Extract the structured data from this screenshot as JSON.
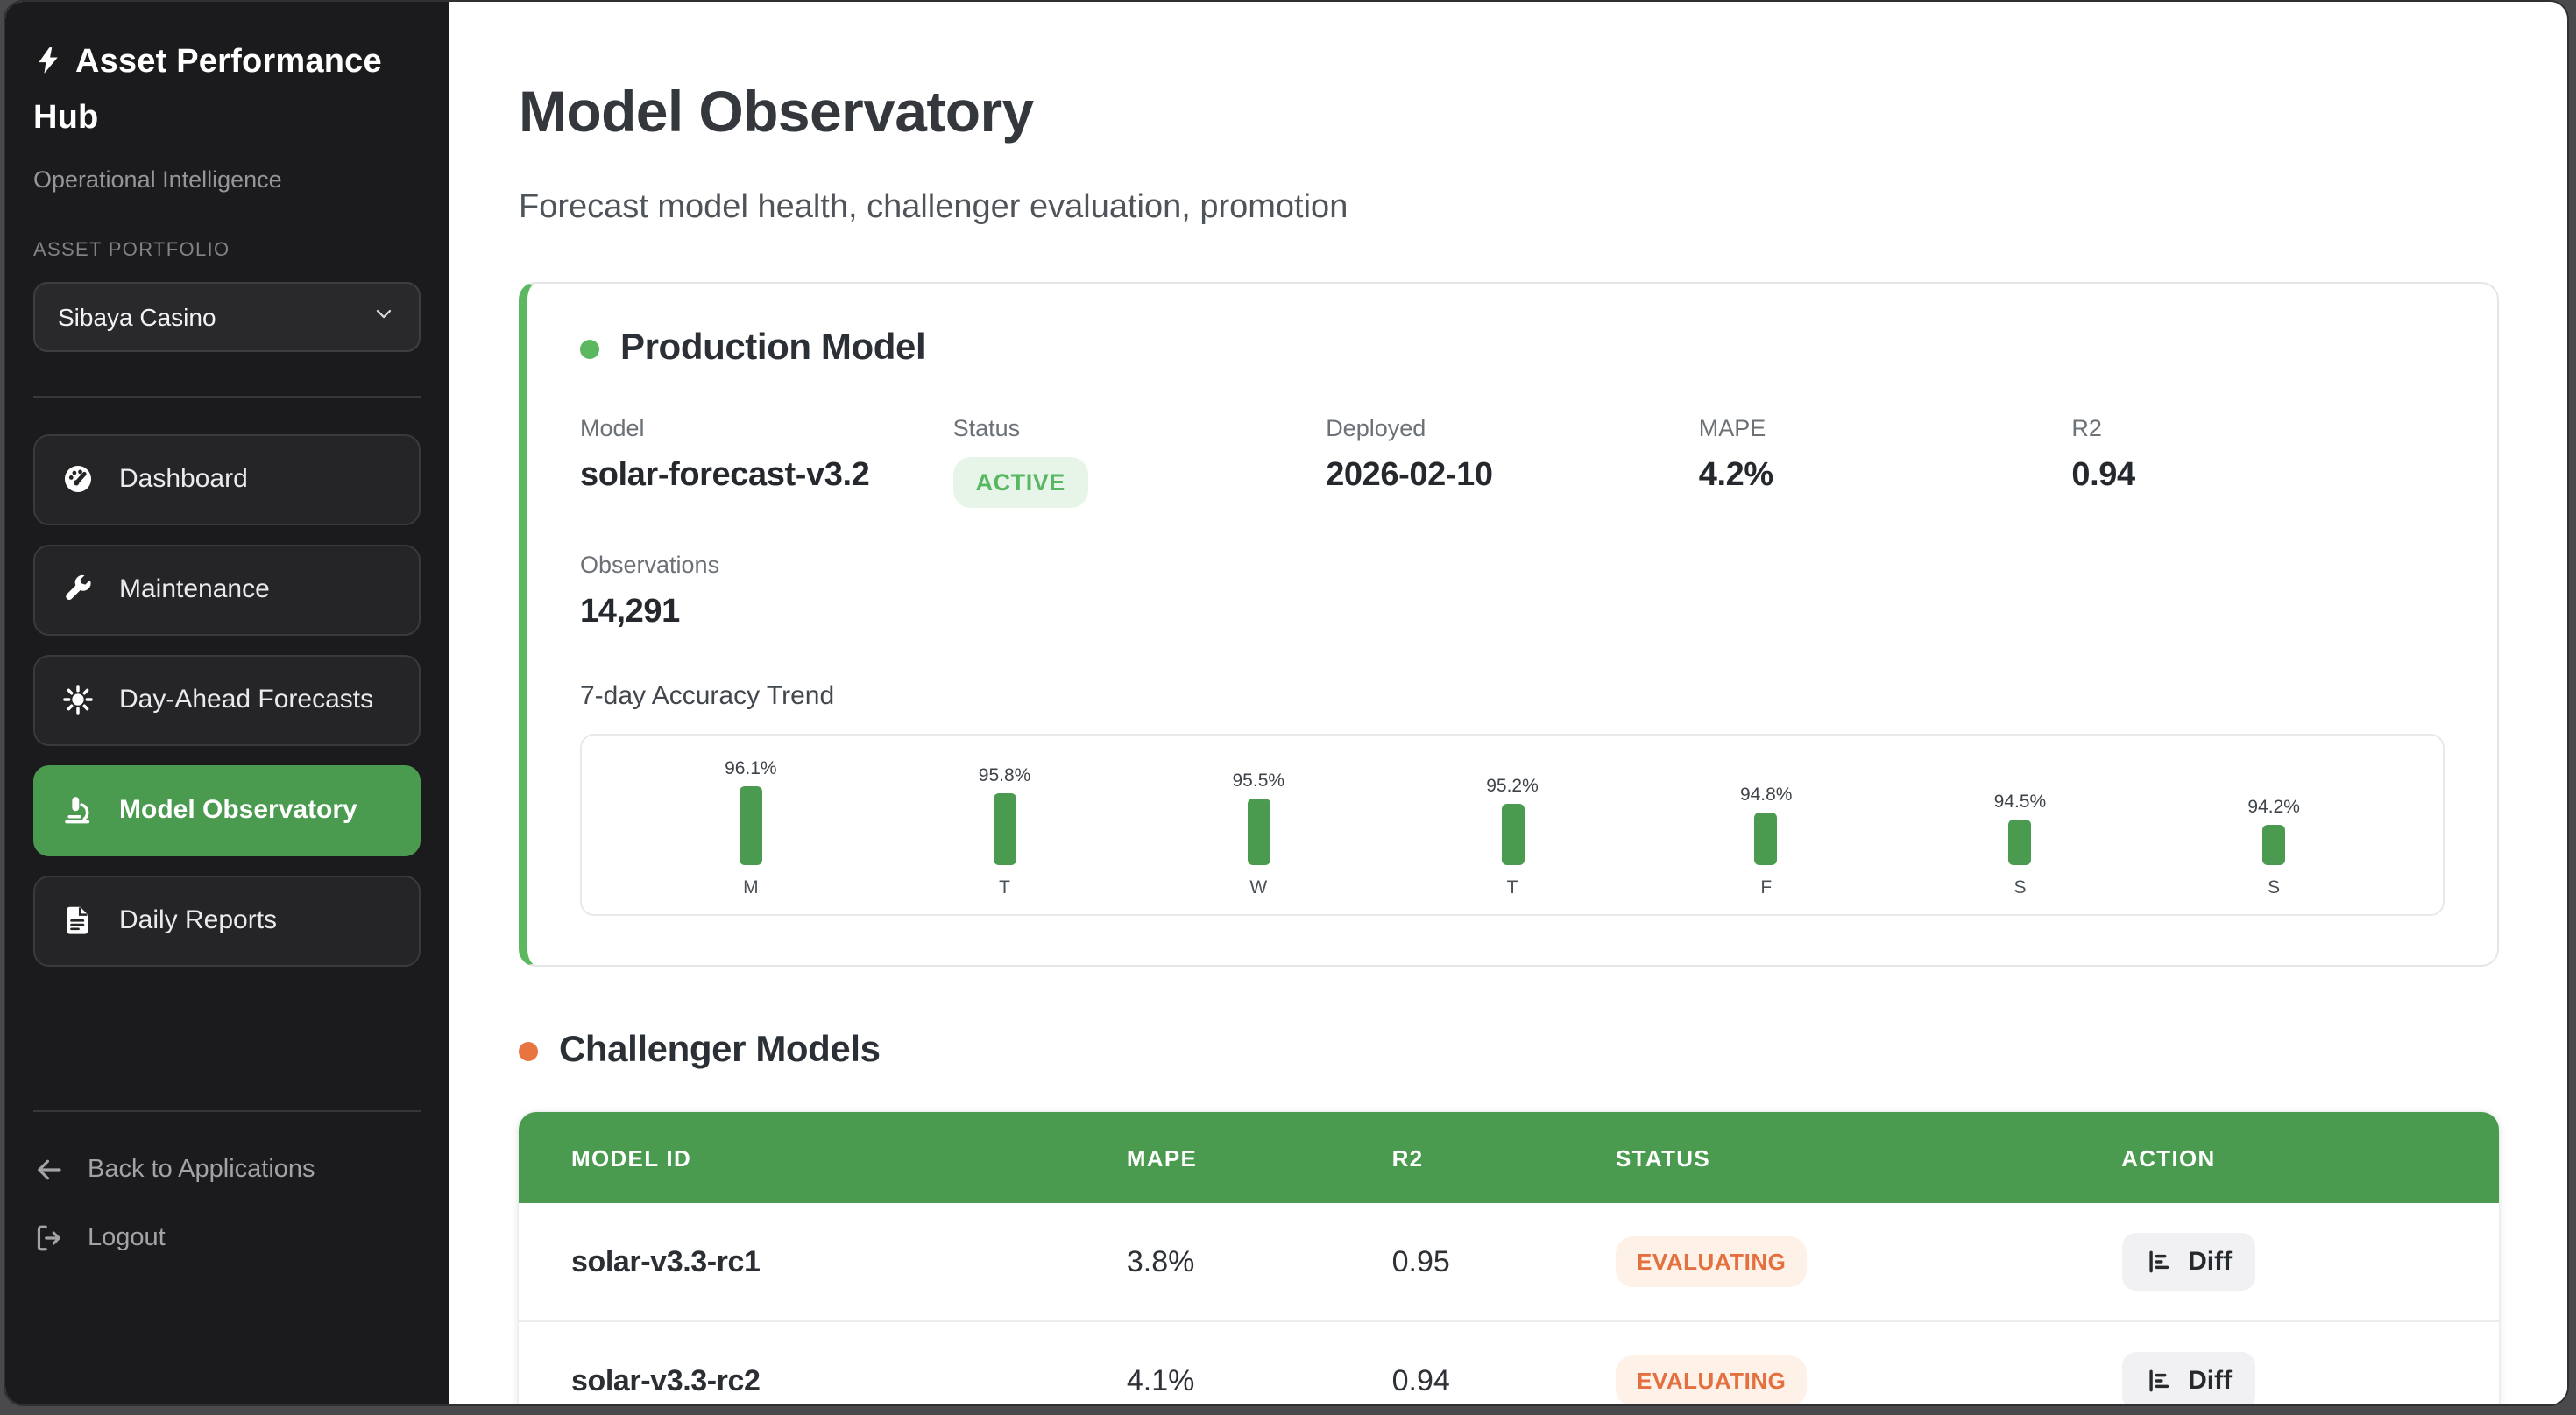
{
  "sidebar": {
    "brand": {
      "icon": "bolt-icon",
      "title": "Asset Performance Hub",
      "subtitle": "Operational Intelligence"
    },
    "portfolio": {
      "label": "ASSET PORTFOLIO",
      "selected": "Sibaya Casino"
    },
    "nav": [
      {
        "label": "Dashboard",
        "icon": "gauge-icon",
        "active": false
      },
      {
        "label": "Maintenance",
        "icon": "wrench-icon",
        "active": false
      },
      {
        "label": "Day-Ahead Forecasts",
        "icon": "sun-icon",
        "active": false
      },
      {
        "label": "Model Observatory",
        "icon": "microscope-icon",
        "active": true
      },
      {
        "label": "Daily Reports",
        "icon": "file-text-icon",
        "active": false
      }
    ],
    "footer": [
      {
        "label": "Back to Applications",
        "icon": "arrow-left-icon"
      },
      {
        "label": "Logout",
        "icon": "logout-icon"
      }
    ]
  },
  "header": {
    "title": "Model Observatory",
    "subtitle": "Forecast model health, challenger evaluation, promotion"
  },
  "production": {
    "section_title": "Production Model",
    "fields": [
      {
        "label": "Model",
        "value": "solar-forecast-v3.2",
        "type": "text"
      },
      {
        "label": "Status",
        "value": "ACTIVE",
        "type": "badge"
      },
      {
        "label": "Deployed",
        "value": "2026-02-10",
        "type": "text"
      },
      {
        "label": "MAPE",
        "value": "4.2%",
        "type": "text"
      },
      {
        "label": "R2",
        "value": "0.94",
        "type": "text"
      },
      {
        "label": "Observations",
        "value": "14,291",
        "type": "text"
      }
    ],
    "trend_label": "7-day Accuracy Trend"
  },
  "chart_data": {
    "type": "bar",
    "title": "7-day Accuracy Trend",
    "categories": [
      "M",
      "T",
      "W",
      "T",
      "F",
      "S",
      "S"
    ],
    "values": [
      96.1,
      95.8,
      95.5,
      95.2,
      94.8,
      94.5,
      94.2
    ],
    "unit": "%",
    "bar_color": "#4a9b50",
    "ylim": [
      94,
      96.5
    ],
    "grid": false,
    "legend": "none"
  },
  "challengers": {
    "section_title": "Challenger Models",
    "table": {
      "columns": [
        "MODEL ID",
        "MAPE",
        "R2",
        "STATUS",
        "ACTION"
      ],
      "rows": [
        {
          "model_id": "solar-v3.3-rc1",
          "mape": "3.8%",
          "r2": "0.95",
          "status": "EVALUATING",
          "action": "Diff",
          "action_icon": "diff-chart-icon"
        },
        {
          "model_id": "solar-v3.3-rc2",
          "mape": "4.1%",
          "r2": "0.94",
          "status": "EVALUATING",
          "action": "Diff",
          "action_icon": "diff-chart-icon"
        }
      ]
    }
  },
  "colors": {
    "accent_green": "#4a9b50",
    "dot_green": "#5cb860",
    "dot_orange": "#e8743f",
    "badge_active_bg": "#e7f4e8",
    "badge_active_text": "#58b762",
    "badge_evaluating_bg": "#fdf1e8",
    "badge_evaluating_text": "#e4703f",
    "sidebar_bg": "#1b1b1d"
  }
}
